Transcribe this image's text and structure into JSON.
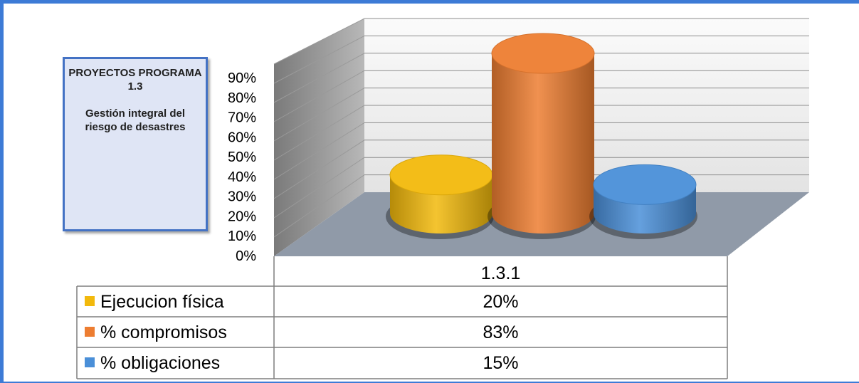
{
  "title_box": {
    "title": "PROYECTOS PROGRAMA 1.3",
    "subtitle": "Gestión integral del riesgo de desastres"
  },
  "chart_data": {
    "type": "bar",
    "style": "3d-cylinder",
    "categories": [
      "1.3.1"
    ],
    "series": [
      {
        "name": "Ejecucion física",
        "values": [
          0.2
        ],
        "label": "20%",
        "color": "#f2b90c"
      },
      {
        "name": "% compromisos",
        "values": [
          0.83
        ],
        "label": "83%",
        "color": "#ed7d31"
      },
      {
        "name": "% obligaciones",
        "values": [
          0.15
        ],
        "label": "15%",
        "color": "#4a8fd8"
      }
    ],
    "y_ticks": [
      "0%",
      "10%",
      "20%",
      "30%",
      "40%",
      "50%",
      "60%",
      "70%",
      "80%",
      "90%"
    ],
    "ylim": [
      0,
      0.9
    ],
    "grid": true,
    "legend": "data-table-bottom"
  }
}
